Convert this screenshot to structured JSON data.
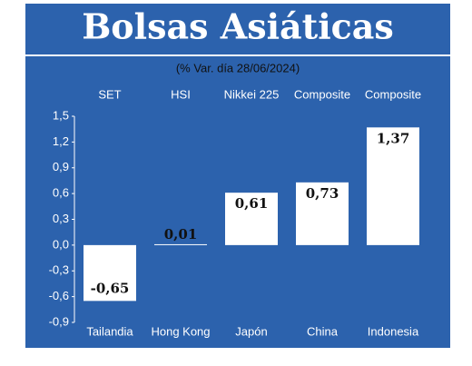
{
  "chart_data": {
    "type": "bar",
    "title": "Bolsas Asiáticas",
    "subtitle": "(% Var. día 28/06/2024)",
    "index_names": [
      "SET",
      "HSI",
      "Nikkei 225",
      "Composite",
      "Composite"
    ],
    "categories": [
      "Tailandia",
      "Hong Kong",
      "Japón",
      "China",
      "Indonesia"
    ],
    "values": [
      -0.65,
      0.01,
      0.61,
      0.73,
      1.37
    ],
    "value_labels": [
      "-0,65",
      "0,01",
      "0,61",
      "0,73",
      "1,37"
    ],
    "color": "#ffffff",
    "ylim": [
      -0.9,
      1.5
    ],
    "yticks": [
      {
        "value": 1.5,
        "label": "1,5"
      },
      {
        "value": 1.2,
        "label": "1,2"
      },
      {
        "value": 0.9,
        "label": "0,9"
      },
      {
        "value": 0.6,
        "label": "0,6"
      },
      {
        "value": 0.3,
        "label": "0,3"
      },
      {
        "value": 0,
        "label": "0,0"
      },
      {
        "value": -0.3,
        "label": "-0,3"
      },
      {
        "value": -0.6,
        "label": "-0,6"
      },
      {
        "value": -0.9,
        "label": "-0,9"
      }
    ]
  }
}
